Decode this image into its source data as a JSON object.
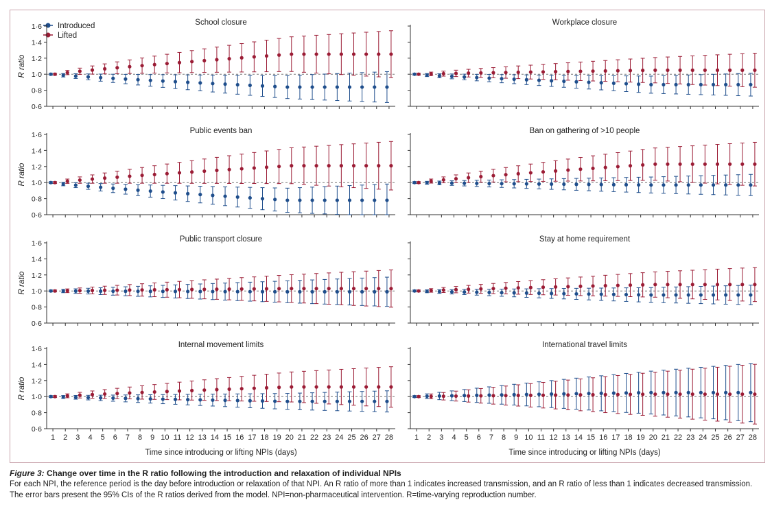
{
  "legend": {
    "introduced": "Introduced",
    "lifted": "Lifted"
  },
  "colors": {
    "introduced": "#1f4e8c",
    "lifted": "#9b1c35",
    "refline": "#777777"
  },
  "xlabel": "Time since introducing or lifting NPIs (days)",
  "ylabel": "R ratio",
  "yticks": [
    "0·6",
    "0·8",
    "1·0",
    "1·2",
    "1·4",
    "1·6"
  ],
  "xticks": [
    "1",
    "2",
    "3",
    "4",
    "5",
    "6",
    "7",
    "8",
    "9",
    "10",
    "11",
    "12",
    "13",
    "14",
    "15",
    "16",
    "17",
    "18",
    "19",
    "20",
    "21",
    "22",
    "23",
    "24",
    "25",
    "26",
    "27",
    "28"
  ],
  "caption": {
    "figure_label": "Figure 3:",
    "title": " Change over time in the R ratio following the introduction and relaxation of individual NPIs",
    "body": "For each NPI, the reference period is the day before introduction or relaxation of that NPI. An R ratio of more than 1 indicates increased transmission, and an R ratio of less than 1 indicates decreased transmission. The error bars present the 95% CIs of the R ratios derived from the model. NPI=non-pharmaceutical intervention. R=time-varying reproduction number."
  },
  "chart_data": [
    {
      "type": "scatter",
      "title": "School closure",
      "ylim": [
        0.6,
        1.6
      ],
      "x": [
        1,
        28
      ],
      "introduced": {
        "end": 0.84,
        "ci_end": 0.18
      },
      "lifted": {
        "end": 1.25,
        "ci_end": 0.28,
        "peak_day": 21
      }
    },
    {
      "type": "scatter",
      "title": "Workplace closure",
      "ylim": [
        0.6,
        1.6
      ],
      "x": [
        1,
        28
      ],
      "introduced": {
        "end": 0.87,
        "ci_end": 0.13
      },
      "lifted": {
        "end": 1.05,
        "ci_end": 0.2
      }
    },
    {
      "type": "scatter",
      "title": "Public events ban",
      "ylim": [
        0.6,
        1.6
      ],
      "x": [
        1,
        28
      ],
      "introduced": {
        "end": 0.78,
        "ci_end": 0.19
      },
      "lifted": {
        "end": 1.21,
        "ci_end": 0.29
      }
    },
    {
      "type": "scatter",
      "title": "Ban on gathering of >10 people",
      "ylim": [
        0.6,
        1.6
      ],
      "x": [
        1,
        28
      ],
      "introduced": {
        "end": 0.97,
        "ci_end": 0.12
      },
      "lifted": {
        "end": 1.23,
        "ci_end": 0.26
      }
    },
    {
      "type": "scatter",
      "title": "Public transport closure",
      "ylim": [
        0.6,
        1.6
      ],
      "x": [
        1,
        28
      ],
      "introduced": {
        "end": 0.99,
        "ci_end": 0.17
      },
      "lifted": {
        "end": 1.03,
        "ci_end": 0.22
      }
    },
    {
      "type": "scatter",
      "title": "Stay at home requirement",
      "ylim": [
        0.6,
        1.6
      ],
      "x": [
        1,
        28
      ],
      "introduced": {
        "end": 0.95,
        "ci_end": 0.11
      },
      "lifted": {
        "end": 1.08,
        "ci_end": 0.2
      }
    },
    {
      "type": "scatter",
      "title": "Internal movement limits",
      "ylim": [
        0.6,
        1.6
      ],
      "x": [
        1,
        28
      ],
      "introduced": {
        "end": 0.94,
        "ci_end": 0.12
      },
      "lifted": {
        "end": 1.12,
        "ci_end": 0.24
      }
    },
    {
      "type": "scatter",
      "title": "International travel limits",
      "ylim": [
        0.6,
        1.6
      ],
      "x": [
        1,
        28
      ],
      "introduced": {
        "end": 1.05,
        "ci_end": 0.35
      },
      "lifted": {
        "end": 1.03,
        "ci_end": 0.36
      }
    }
  ]
}
